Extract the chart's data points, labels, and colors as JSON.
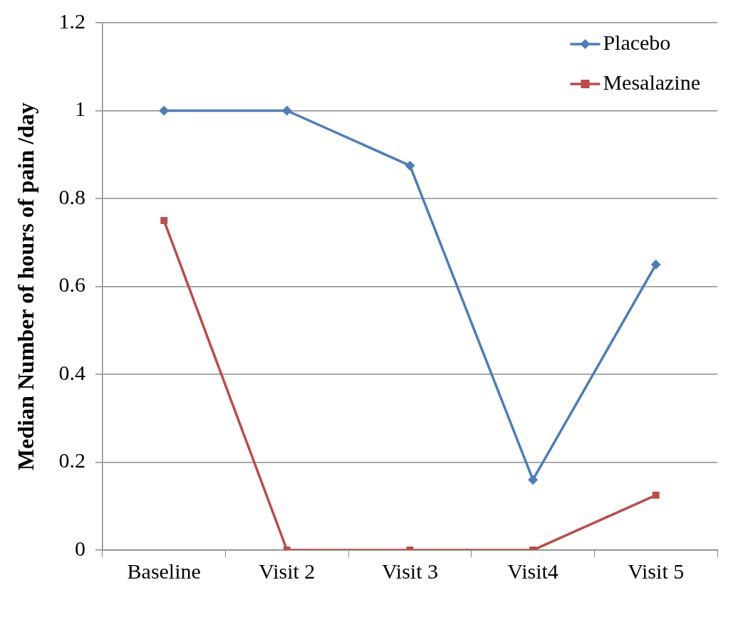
{
  "chart_data": {
    "type": "line",
    "ylabel": "Median Number of hours of pain /day",
    "categories": [
      "Baseline",
      "Visit 2",
      "Visit 3",
      "Visit4",
      "Visit 5"
    ],
    "series": [
      {
        "name": "Placebo",
        "color": "#4a7ebb",
        "marker": "diamond",
        "values": [
          1,
          1,
          0.875,
          0.16,
          0.65
        ]
      },
      {
        "name": "Mesalazine",
        "color": "#be4b48",
        "marker": "square",
        "values": [
          0.75,
          0,
          0,
          0,
          0.125
        ]
      }
    ],
    "ylim": [
      0,
      1.2
    ],
    "yticks": [
      0,
      0.2,
      0.4,
      0.6,
      0.8,
      1,
      1.2
    ],
    "grid": "y",
    "legend": "top right",
    "line_style": "solid"
  }
}
